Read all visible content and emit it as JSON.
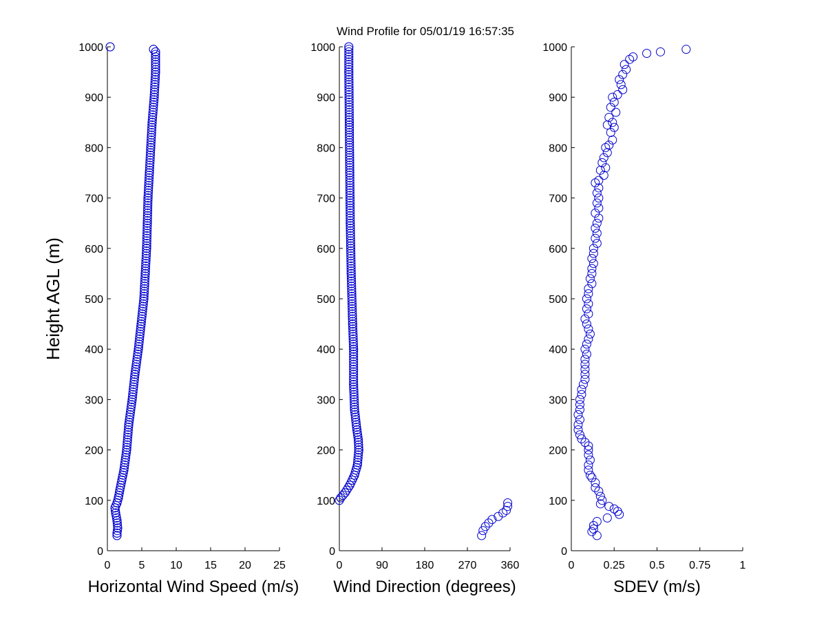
{
  "chart_data": {
    "type": "scatter",
    "title": "Wind Profile for  05/01/19 16:57:35",
    "ylabel": "Height AGL (m)",
    "marker": "open-circle",
    "marker_color": "#0000cc",
    "grid": false,
    "legend": "none",
    "panels": [
      {
        "id": "speed",
        "xlabel": "Horizontal Wind Speed (m/s)",
        "xlim": [
          0,
          25
        ],
        "xticks": [
          0,
          5,
          10,
          15,
          20,
          25
        ],
        "xtick_labels": [
          "0",
          "5",
          "10",
          "15",
          "20",
          "25"
        ],
        "ylim": [
          0,
          1000
        ],
        "yticks": [
          0,
          100,
          200,
          300,
          400,
          500,
          600,
          700,
          800,
          900,
          1000
        ],
        "ytick_labels": [
          "0",
          "100",
          "200",
          "300",
          "400",
          "500",
          "600",
          "700",
          "800",
          "900",
          "1000"
        ],
        "anchors": [
          [
            0.4,
            1000
          ],
          [
            6.7,
            995
          ],
          [
            7.0,
            990
          ],
          [
            7.0,
            950
          ],
          [
            6.8,
            900
          ],
          [
            6.5,
            850
          ],
          [
            6.3,
            800
          ],
          [
            6.1,
            750
          ],
          [
            5.9,
            700
          ],
          [
            5.8,
            650
          ],
          [
            5.7,
            600
          ],
          [
            5.5,
            550
          ],
          [
            5.3,
            500
          ],
          [
            4.9,
            450
          ],
          [
            4.5,
            400
          ],
          [
            4.0,
            350
          ],
          [
            3.6,
            300
          ],
          [
            3.1,
            250
          ],
          [
            2.8,
            200
          ],
          [
            2.4,
            160
          ],
          [
            2.1,
            140
          ],
          [
            1.8,
            120
          ],
          [
            1.6,
            105
          ],
          [
            1.4,
            95
          ],
          [
            1.1,
            85
          ],
          [
            1.2,
            75
          ],
          [
            1.4,
            60
          ],
          [
            1.5,
            45
          ],
          [
            1.4,
            35
          ],
          [
            1.4,
            30
          ]
        ]
      },
      {
        "id": "direction",
        "xlabel": "Wind Direction (degrees)",
        "xlim": [
          0,
          360
        ],
        "xticks": [
          0,
          90,
          180,
          270,
          360
        ],
        "xtick_labels": [
          "0",
          "90",
          "180",
          "270",
          "360"
        ],
        "ylim": [
          0,
          1000
        ],
        "yticks": [
          0,
          100,
          200,
          300,
          400,
          500,
          600,
          700,
          800,
          900,
          1000
        ],
        "ytick_labels": [
          "0",
          "100",
          "200",
          "300",
          "400",
          "500",
          "600",
          "700",
          "800",
          "900",
          "1000"
        ],
        "anchors": [
          [
            20,
            1000
          ],
          [
            20,
            950
          ],
          [
            21,
            850
          ],
          [
            22,
            750
          ],
          [
            23,
            650
          ],
          [
            25,
            550
          ],
          [
            28,
            450
          ],
          [
            30,
            400
          ],
          [
            30,
            330
          ],
          [
            32,
            280
          ],
          [
            37,
            240
          ],
          [
            40,
            220
          ],
          [
            41,
            200
          ],
          [
            38,
            170
          ],
          [
            32,
            150
          ],
          [
            22,
            130
          ],
          [
            12,
            115
          ],
          [
            3,
            105
          ],
          [
            0,
            100
          ]
        ],
        "extra_points": [
          [
            355,
            95
          ],
          [
            355,
            88
          ],
          [
            352,
            80
          ],
          [
            345,
            75
          ],
          [
            335,
            68
          ],
          [
            322,
            62
          ],
          [
            315,
            55
          ],
          [
            308,
            48
          ],
          [
            303,
            40
          ],
          [
            300,
            30
          ]
        ]
      },
      {
        "id": "sdev",
        "xlabel": "SDEV  (m/s)",
        "xlim": [
          0,
          1
        ],
        "xticks": [
          0,
          0.25,
          0.5,
          0.75,
          1
        ],
        "xtick_labels": [
          "0",
          "0.25",
          "0.5",
          "0.75",
          "1"
        ],
        "ylim": [
          0,
          1000
        ],
        "yticks": [
          0,
          100,
          200,
          300,
          400,
          500,
          600,
          700,
          800,
          900,
          1000
        ],
        "ytick_labels": [
          "0",
          "100",
          "200",
          "300",
          "400",
          "500",
          "600",
          "700",
          "800",
          "900",
          "1000"
        ],
        "points": [
          [
            0.67,
            995
          ],
          [
            0.52,
            990
          ],
          [
            0.44,
            987
          ],
          [
            0.36,
            980
          ],
          [
            0.34,
            975
          ],
          [
            0.31,
            965
          ],
          [
            0.32,
            955
          ],
          [
            0.3,
            945
          ],
          [
            0.28,
            935
          ],
          [
            0.29,
            925
          ],
          [
            0.3,
            915
          ],
          [
            0.27,
            905
          ],
          [
            0.24,
            900
          ],
          [
            0.25,
            890
          ],
          [
            0.23,
            880
          ],
          [
            0.26,
            870
          ],
          [
            0.22,
            860
          ],
          [
            0.24,
            850
          ],
          [
            0.21,
            845
          ],
          [
            0.25,
            840
          ],
          [
            0.23,
            830
          ],
          [
            0.24,
            815
          ],
          [
            0.22,
            805
          ],
          [
            0.2,
            800
          ],
          [
            0.21,
            790
          ],
          [
            0.19,
            780
          ],
          [
            0.18,
            770
          ],
          [
            0.2,
            760
          ],
          [
            0.17,
            755
          ],
          [
            0.19,
            745
          ],
          [
            0.16,
            735
          ],
          [
            0.14,
            730
          ],
          [
            0.16,
            720
          ],
          [
            0.15,
            710
          ],
          [
            0.16,
            700
          ],
          [
            0.15,
            690
          ],
          [
            0.16,
            680
          ],
          [
            0.14,
            670
          ],
          [
            0.16,
            660
          ],
          [
            0.15,
            650
          ],
          [
            0.14,
            640
          ],
          [
            0.15,
            630
          ],
          [
            0.14,
            620
          ],
          [
            0.15,
            610
          ],
          [
            0.13,
            600
          ],
          [
            0.13,
            590
          ],
          [
            0.12,
            580
          ],
          [
            0.13,
            570
          ],
          [
            0.12,
            560
          ],
          [
            0.12,
            550
          ],
          [
            0.11,
            540
          ],
          [
            0.12,
            530
          ],
          [
            0.1,
            520
          ],
          [
            0.1,
            510
          ],
          [
            0.09,
            500
          ],
          [
            0.1,
            490
          ],
          [
            0.09,
            480
          ],
          [
            0.1,
            470
          ],
          [
            0.08,
            460
          ],
          [
            0.09,
            450
          ],
          [
            0.1,
            440
          ],
          [
            0.11,
            430
          ],
          [
            0.1,
            420
          ],
          [
            0.09,
            410
          ],
          [
            0.08,
            400
          ],
          [
            0.09,
            390
          ],
          [
            0.08,
            380
          ],
          [
            0.08,
            370
          ],
          [
            0.08,
            360
          ],
          [
            0.08,
            350
          ],
          [
            0.08,
            340
          ],
          [
            0.07,
            330
          ],
          [
            0.06,
            320
          ],
          [
            0.06,
            310
          ],
          [
            0.05,
            300
          ],
          [
            0.05,
            290
          ],
          [
            0.05,
            280
          ],
          [
            0.04,
            270
          ],
          [
            0.05,
            260
          ],
          [
            0.04,
            250
          ],
          [
            0.04,
            240
          ],
          [
            0.05,
            230
          ],
          [
            0.06,
            222
          ],
          [
            0.08,
            215
          ],
          [
            0.1,
            208
          ],
          [
            0.1,
            200
          ],
          [
            0.1,
            190
          ],
          [
            0.11,
            180
          ],
          [
            0.1,
            170
          ],
          [
            0.1,
            160
          ],
          [
            0.11,
            150
          ],
          [
            0.12,
            145
          ],
          [
            0.14,
            135
          ],
          [
            0.14,
            125
          ],
          [
            0.16,
            118
          ],
          [
            0.17,
            108
          ],
          [
            0.18,
            100
          ],
          [
            0.17,
            93
          ],
          [
            0.22,
            88
          ],
          [
            0.25,
            83
          ],
          [
            0.27,
            78
          ],
          [
            0.28,
            72
          ],
          [
            0.21,
            65
          ],
          [
            0.15,
            58
          ],
          [
            0.13,
            50
          ],
          [
            0.13,
            43
          ],
          [
            0.12,
            38
          ],
          [
            0.15,
            30
          ]
        ]
      }
    ]
  }
}
